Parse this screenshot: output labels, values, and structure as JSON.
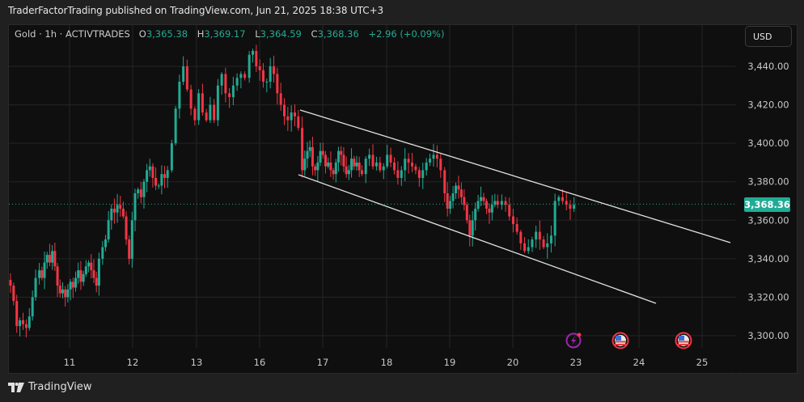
{
  "header": {
    "published": "TraderFactorTrading published on TradingView.com, Jun 21, 2025 18:38 UTC+3"
  },
  "legend": {
    "symbol": "Gold · 1h · ACTIVTRADES",
    "open_label": "O",
    "open": "3,365.38",
    "high_label": "H",
    "high": "3,369.17",
    "low_label": "L",
    "low": "3,364.59",
    "close_label": "C",
    "close": "3,368.36",
    "change": "+2.96 (+0.09%)"
  },
  "currency_button": {
    "label": "USD"
  },
  "last_price_tag": "3,368.36",
  "footer": {
    "brand": "TradingView"
  },
  "colors": {
    "up": "#22ab94",
    "down": "#f23645",
    "background": "#0f0f0f",
    "frame": "#202020",
    "grid": "#242424",
    "trendline": "#e0e0e0",
    "last_price": "#22ab94"
  },
  "events": [
    {
      "type": "lightning-event",
      "x": 709
    },
    {
      "type": "us-flag-event",
      "x": 767
    },
    {
      "type": "us-flag-event",
      "x": 845
    }
  ],
  "chart_data": {
    "type": "candlestick",
    "title": "Gold · 1h · ACTIVTRADES",
    "xlabel": "",
    "ylabel": "USD",
    "ylim": [
      3295,
      3455
    ],
    "y_ticks": [
      "3,300.00",
      "3,320.00",
      "3,340.00",
      "3,360.00",
      "3,380.00",
      "3,400.00",
      "3,420.00",
      "3,440.00"
    ],
    "x_ticks": [
      "11",
      "12",
      "13",
      "16",
      "17",
      "18",
      "19",
      "20",
      "23",
      "24",
      "25"
    ],
    "grid": true,
    "last_price": 3368.36,
    "ohlc_summary": {
      "open": 3365.38,
      "high": 3369.17,
      "low": 3364.59,
      "close": 3368.36,
      "change": 2.96,
      "change_pct": 0.09
    },
    "channel": {
      "upper": {
        "from": [
          "Jun 16 ~15:00",
          3418
        ],
        "to": [
          "Jun 25 ~09:00",
          3348
        ]
      },
      "lower": {
        "from": [
          "Jun 16 ~15:00",
          3384
        ],
        "to": [
          "Jun 24 ~21:00",
          3318
        ]
      }
    },
    "closes_by_segment": [
      {
        "day": "10",
        "closes": [
          3326,
          3318,
          3305,
          3308,
          3306,
          3304,
          3310,
          3320,
          3330
        ]
      },
      {
        "day": "11",
        "closes": [
          3334,
          3330,
          3338,
          3342,
          3338,
          3344,
          3336,
          3326,
          3322,
          3324,
          3320,
          3324,
          3328,
          3325,
          3330,
          3334,
          3328,
          3332,
          3336,
          3338,
          3334,
          3330,
          3326,
          3340
        ]
      },
      {
        "day": "12",
        "closes": [
          3346,
          3350,
          3360,
          3366,
          3364,
          3368,
          3366,
          3362,
          3350,
          3340,
          3360,
          3374,
          3376,
          3372,
          3380,
          3386,
          3388,
          3382,
          3378,
          3378,
          3384,
          3382,
          3386
        ]
      },
      {
        "day": "13",
        "closes": [
          3400,
          3418,
          3432,
          3440,
          3428,
          3418,
          3412,
          3426,
          3416,
          3412,
          3420,
          3412,
          3430,
          3436,
          3426,
          3424,
          3430,
          3434,
          3436,
          3434
        ]
      },
      {
        "day": "16",
        "closes": [
          3446,
          3448,
          3440,
          3438,
          3432,
          3432,
          3440,
          3436,
          3426,
          3420,
          3414,
          3412,
          3416,
          3414,
          3408
        ]
      },
      {
        "day": "17",
        "closes": [
          3386,
          3392,
          3396,
          3398,
          3388,
          3386,
          3390,
          3396,
          3394,
          3388,
          3390,
          3386,
          3384,
          3390,
          3396,
          3394,
          3388,
          3384,
          3386,
          3392,
          3388,
          3390,
          3386,
          3384
        ]
      },
      {
        "day": "18",
        "closes": [
          3392,
          3394,
          3388,
          3390,
          3386,
          3388,
          3394,
          3390,
          3386,
          3382,
          3386,
          3392,
          3390,
          3388,
          3386,
          3382,
          3386,
          3390,
          3392,
          3394,
          3392,
          3386
        ]
      },
      {
        "day": "19",
        "closes": [
          3374,
          3366,
          3370,
          3374,
          3378,
          3376,
          3372,
          3368,
          3360,
          3352,
          3360,
          3366,
          3370,
          3372,
          3370,
          3366,
          3364,
          3368,
          3370,
          3368
        ]
      },
      {
        "day": "20",
        "closes": [
          3370,
          3368,
          3362,
          3358,
          3354,
          3348,
          3344,
          3346,
          3350,
          3354,
          3350,
          3346,
          3348,
          3352,
          3370,
          3372,
          3370,
          3368,
          3366,
          3368
        ]
      }
    ]
  }
}
